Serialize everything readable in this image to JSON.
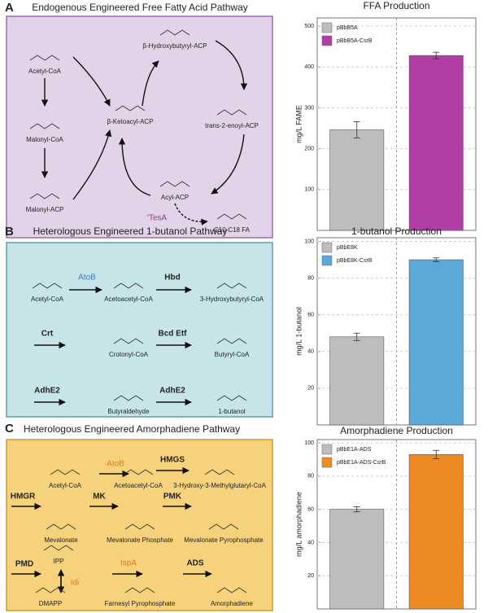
{
  "panels": [
    {
      "letter": "A",
      "title": "Endogenous Engineered Free Fatty Acid Pathway",
      "nodes": [
        {
          "label": "Acetyl-CoA"
        },
        {
          "label": "Malonyl-CoA"
        },
        {
          "label": "Malonyl-ACP"
        },
        {
          "label": "β-Ketoacyl-ACP"
        },
        {
          "label": "β-Hydroxybutyryl-ACP"
        },
        {
          "label": "trans-2-enoyl-ACP"
        },
        {
          "label": "Acyl-ACP"
        },
        {
          "label": "'TesA",
          "color": "#8e3a8e",
          "enzyme": true
        },
        {
          "label": "C10-C18 FA"
        }
      ]
    },
    {
      "letter": "B",
      "title": "Heterologous Engineered 1-butanol Pathway",
      "nodes": [
        {
          "label": "Acetyl-CoA"
        },
        {
          "label": "AtoB",
          "color": "#3a7fb5",
          "enzyme": true
        },
        {
          "label": "Acetoacetyl-CoA"
        },
        {
          "label": "Hbd",
          "enzyme": true,
          "bold": true
        },
        {
          "label": "3-Hydroxybutyryl-CoA"
        },
        {
          "label": "Crt",
          "enzyme": true,
          "bold": true
        },
        {
          "label": "Crotonyl-CoA"
        },
        {
          "label": "Bcd Etf",
          "enzyme": true,
          "bold": true
        },
        {
          "label": "Butyryl-CoA"
        },
        {
          "label": "AdhE2",
          "enzyme": true,
          "bold": true
        },
        {
          "label": "Butyraldehyde"
        },
        {
          "label": "AdhE2",
          "enzyme": true,
          "bold": true
        },
        {
          "label": "1-butanol"
        }
      ]
    },
    {
      "letter": "C",
      "title": "Heterologous Engineered Amorphadiene Pathway",
      "nodes": [
        {
          "label": "Acetyl-CoA"
        },
        {
          "label": "AtoB",
          "color": "#e07b20",
          "enzyme": true
        },
        {
          "label": "Acetoacetyl-CoA"
        },
        {
          "label": "HMGS",
          "enzyme": true,
          "bold": true
        },
        {
          "label": "3-Hydroxy-3-Methylglutaryl-CoA"
        },
        {
          "label": "HMGR",
          "enzyme": true,
          "bold": true
        },
        {
          "label": "Mevalonate"
        },
        {
          "label": "MK",
          "enzyme": true,
          "bold": true
        },
        {
          "label": "Mevalonate Phosphate"
        },
        {
          "label": "PMK",
          "enzyme": true,
          "bold": true
        },
        {
          "label": "Mevalonate Pyrophosphate"
        },
        {
          "label": "PMD",
          "enzyme": true,
          "bold": true
        },
        {
          "label": "IPP"
        },
        {
          "label": "Idi",
          "color": "#e07b20",
          "enzyme": true
        },
        {
          "label": "DMAPP"
        },
        {
          "label": "IspA",
          "color": "#e07b20",
          "enzyme": true
        },
        {
          "label": "Farnesyl Pyrophosphate"
        },
        {
          "label": "ADS",
          "enzyme": true,
          "bold": true
        },
        {
          "label": "Amorphadiene"
        }
      ]
    }
  ],
  "chart_data": [
    {
      "type": "bar",
      "title": "FFA Production",
      "ylabel": "mg/L FAME",
      "series": [
        {
          "name": "pBbB5A",
          "color": "#bdbdbd",
          "values": [
            246
          ],
          "errors": [
            20
          ]
        },
        {
          "name": "pBbB5A-CsrB",
          "color": "#b23fa6",
          "values": [
            428
          ],
          "errors": [
            8
          ]
        }
      ],
      "ylim": [
        0,
        520
      ],
      "yticks": [
        100,
        200,
        300,
        400,
        500
      ],
      "grid": true
    },
    {
      "type": "bar",
      "title": "1-butanol Production",
      "ylabel": "mg/L 1-butanol",
      "series": [
        {
          "name": "pBbE8K",
          "color": "#bdbdbd",
          "values": [
            48
          ],
          "errors": [
            2
          ]
        },
        {
          "name": "pBbE8K-CsrB",
          "color": "#5aa9d8",
          "values": [
            90
          ],
          "errors": [
            1
          ]
        }
      ],
      "ylim": [
        0,
        102
      ],
      "yticks": [
        20,
        40,
        60,
        80,
        100
      ],
      "grid": true
    },
    {
      "type": "bar",
      "title": "Amorphadiene Production",
      "ylabel": "mg/L amorphadiene",
      "series": [
        {
          "name": "pBbE1A-ADS",
          "color": "#bdbdbd",
          "values": [
            60
          ],
          "errors": [
            1.5
          ]
        },
        {
          "name": "pBbE1A-ADS-CsrB",
          "color": "#ee8a24",
          "values": [
            93
          ],
          "errors": [
            2.5
          ]
        }
      ],
      "ylim": [
        0,
        102
      ],
      "yticks": [
        20,
        40,
        60,
        80,
        100
      ],
      "grid": true
    }
  ]
}
